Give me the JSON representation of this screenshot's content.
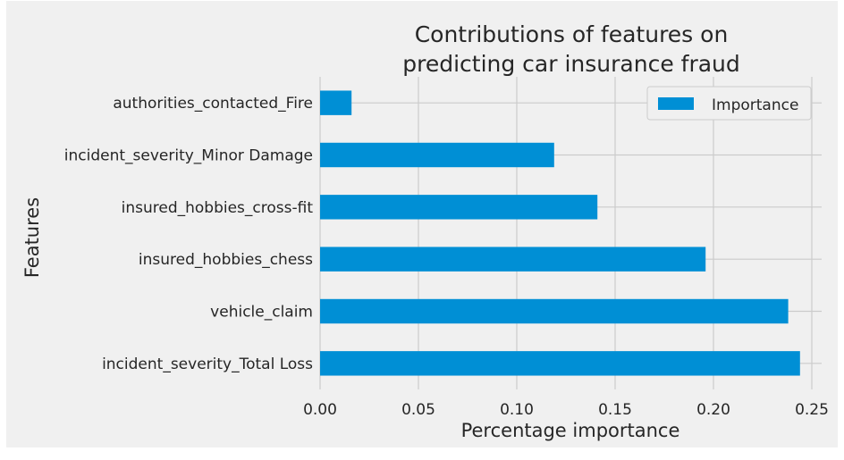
{
  "chart_data": {
    "type": "bar",
    "orientation": "horizontal",
    "title": "Contributions of features on\npredicting car insurance fraud",
    "xlabel": "Percentage importance",
    "ylabel": "Features",
    "categories": [
      "incident_severity_Total Loss",
      "vehicle_claim",
      "insured_hobbies_chess",
      "insured_hobbies_cross-fit",
      "incident_severity_Minor Damage",
      "authorities_contacted_Fire"
    ],
    "series": [
      {
        "name": "Importance",
        "values": [
          0.244,
          0.238,
          0.196,
          0.141,
          0.119,
          0.016
        ]
      }
    ],
    "xlim": [
      0,
      0.255
    ],
    "xticks": [
      "0.00",
      "0.05",
      "0.10",
      "0.15",
      "0.20",
      "0.25"
    ],
    "grid": true,
    "legend": "top-right",
    "colors": {
      "bar": "#008fd5",
      "background": "#f0f0f0",
      "grid": "#cbcbcb"
    }
  }
}
